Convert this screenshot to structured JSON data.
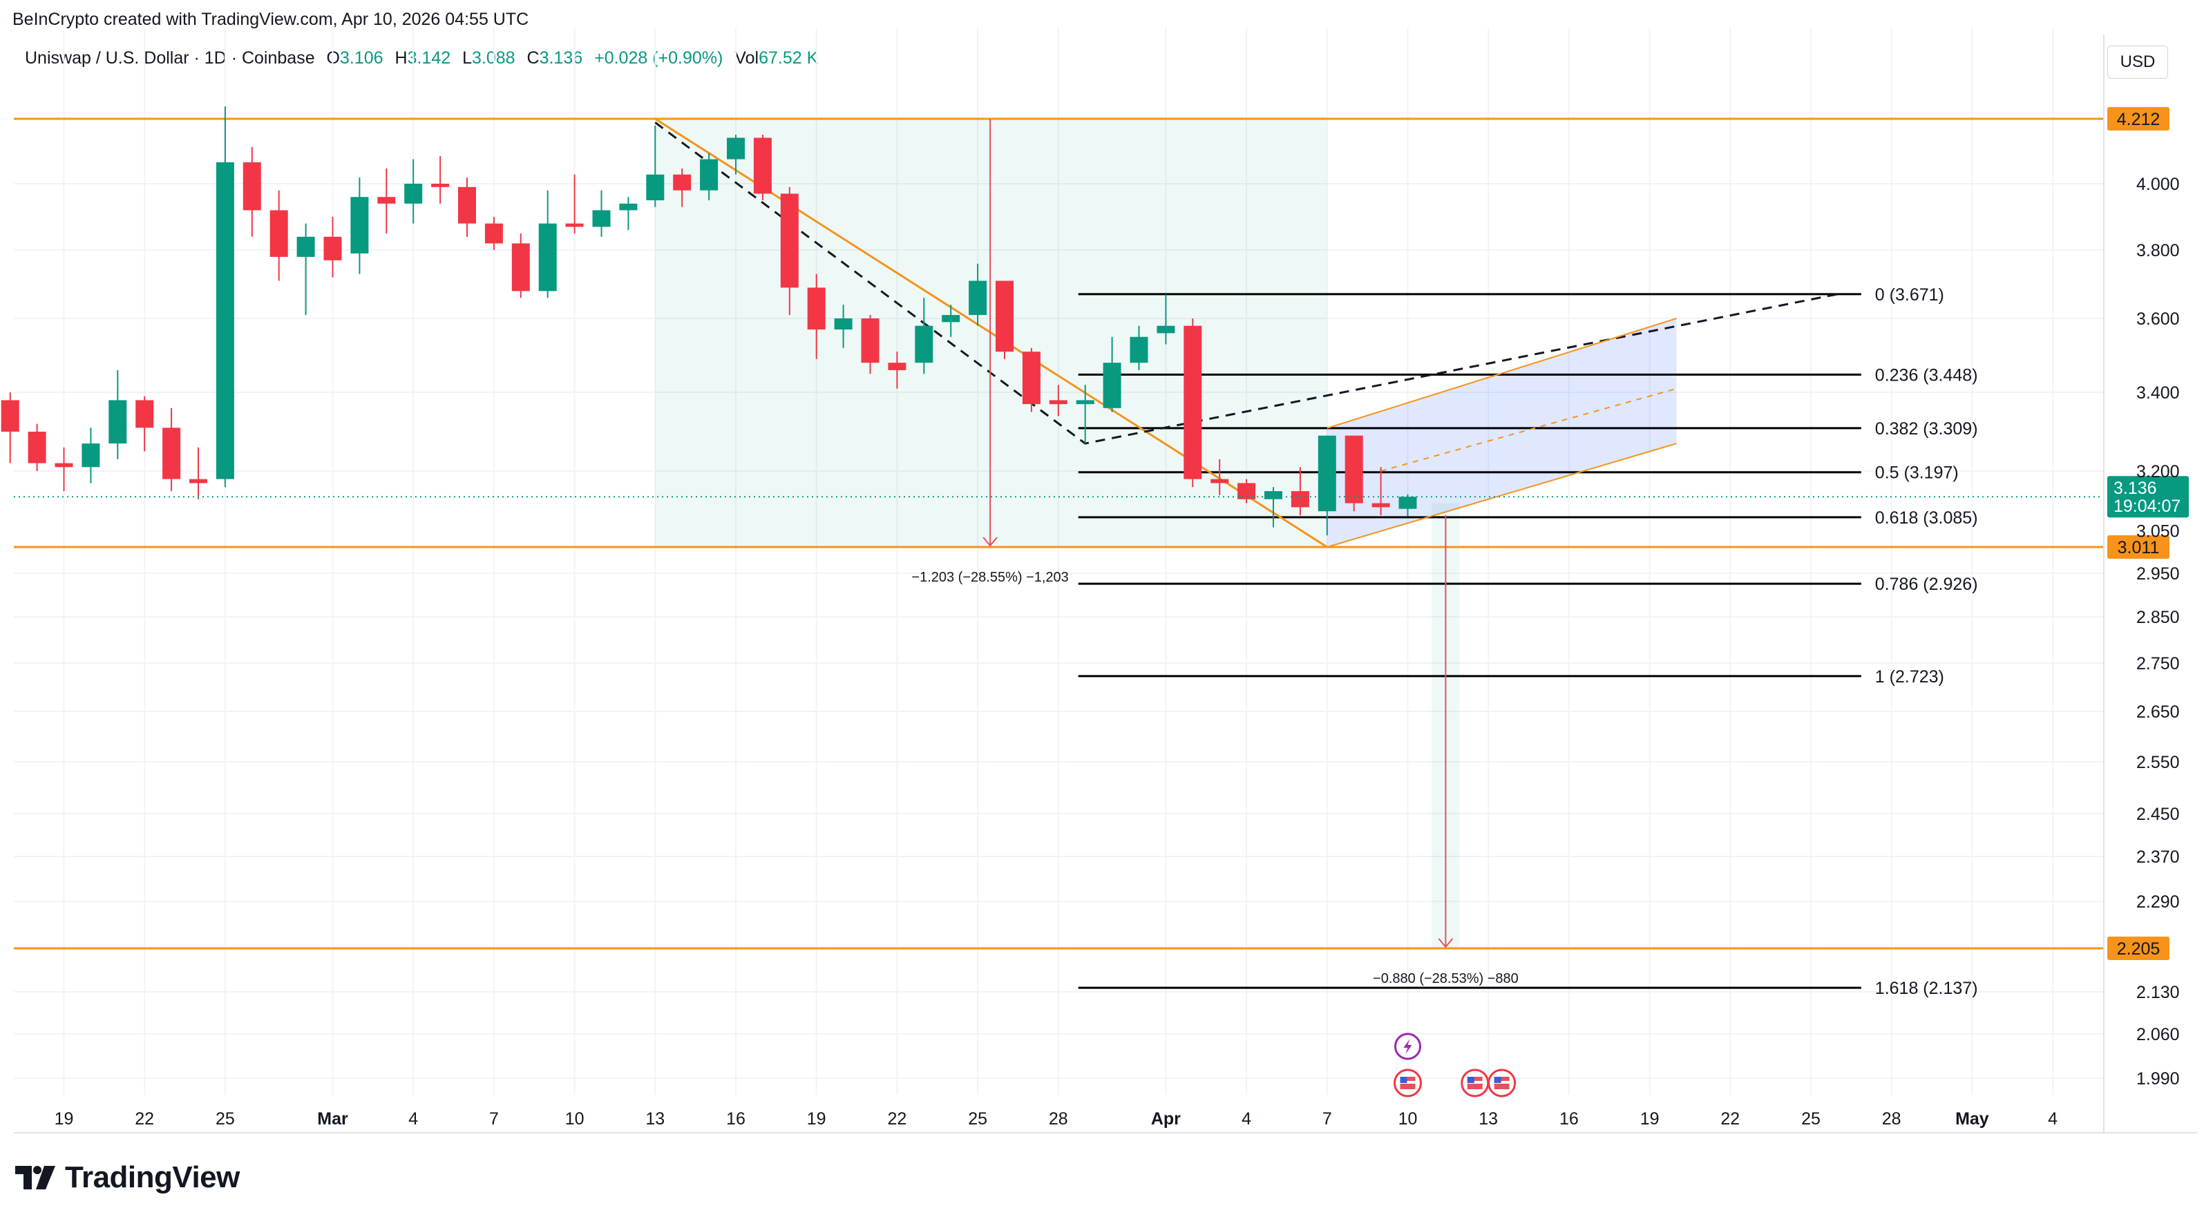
{
  "header": {
    "credit": "BeInCrypto created with TradingView.com, Apr 10, 2026 04:55 UTC",
    "symbol": "Uniswap / U.S. Dollar · 1D · Coinbase",
    "open_label": "O",
    "open": "3.106",
    "high_label": "H",
    "high": "3.142",
    "low_label": "L",
    "low": "3.088",
    "close_label": "C",
    "close": "3.136",
    "change": "+0.028 (+0.90%)",
    "vol_label": "Vol",
    "vol": "67.52 K",
    "currency": "USD"
  },
  "footer": {
    "brand": "TradingView"
  },
  "colors": {
    "up": "#089981",
    "down": "#f23645",
    "level": "#f7931a",
    "fib": "#000000",
    "measure": "#e8505b"
  },
  "chart_data": {
    "type": "candlestick",
    "timeframe": "1D",
    "x_ticks": [
      "19",
      "22",
      "25",
      "Mar",
      "4",
      "7",
      "10",
      "13",
      "16",
      "19",
      "22",
      "25",
      "28",
      "Apr",
      "4",
      "7",
      "10",
      "13",
      "16",
      "19",
      "22",
      "25",
      "28",
      "May",
      "4"
    ],
    "y_ticks": [
      "4.000",
      "3.800",
      "3.600",
      "3.400",
      "3.200",
      "2.950",
      "2.850",
      "2.750",
      "2.650",
      "2.550",
      "2.450",
      "2.370",
      "2.290",
      "2.130",
      "2.060",
      "1.990"
    ],
    "ylim": [
      1.96,
      4.4
    ],
    "candles": [
      {
        "d": "Feb 17",
        "o": 3.38,
        "h": 3.4,
        "l": 3.22,
        "c": 3.3
      },
      {
        "d": "Feb 18",
        "o": 3.3,
        "h": 3.32,
        "l": 3.2,
        "c": 3.22
      },
      {
        "d": "Feb 19",
        "o": 3.22,
        "h": 3.26,
        "l": 3.15,
        "c": 3.21
      },
      {
        "d": "Feb 20",
        "o": 3.21,
        "h": 3.31,
        "l": 3.17,
        "c": 3.27
      },
      {
        "d": "Feb 21",
        "o": 3.27,
        "h": 3.46,
        "l": 3.23,
        "c": 3.38
      },
      {
        "d": "Feb 22",
        "o": 3.38,
        "h": 3.39,
        "l": 3.25,
        "c": 3.31
      },
      {
        "d": "Feb 23",
        "o": 3.31,
        "h": 3.36,
        "l": 3.15,
        "c": 3.18
      },
      {
        "d": "Feb 24",
        "o": 3.18,
        "h": 3.26,
        "l": 3.13,
        "c": 3.17
      },
      {
        "d": "Feb 25",
        "o": 3.18,
        "h": 4.25,
        "l": 3.16,
        "c": 4.07
      },
      {
        "d": "Feb 26",
        "o": 4.07,
        "h": 4.12,
        "l": 3.84,
        "c": 3.92
      },
      {
        "d": "Feb 27",
        "o": 3.92,
        "h": 3.98,
        "l": 3.71,
        "c": 3.78
      },
      {
        "d": "Feb 28",
        "o": 3.78,
        "h": 3.88,
        "l": 3.61,
        "c": 3.84
      },
      {
        "d": "Mar 1",
        "o": 3.84,
        "h": 3.9,
        "l": 3.72,
        "c": 3.77
      },
      {
        "d": "Mar 2",
        "o": 3.79,
        "h": 4.02,
        "l": 3.73,
        "c": 3.96
      },
      {
        "d": "Mar 3",
        "o": 3.96,
        "h": 4.05,
        "l": 3.85,
        "c": 3.94
      },
      {
        "d": "Mar 4",
        "o": 3.94,
        "h": 4.08,
        "l": 3.88,
        "c": 4.0
      },
      {
        "d": "Mar 5",
        "o": 4.0,
        "h": 4.09,
        "l": 3.94,
        "c": 3.99
      },
      {
        "d": "Mar 6",
        "o": 3.99,
        "h": 4.02,
        "l": 3.84,
        "c": 3.88
      },
      {
        "d": "Mar 7",
        "o": 3.88,
        "h": 3.9,
        "l": 3.8,
        "c": 3.82
      },
      {
        "d": "Mar 8",
        "o": 3.82,
        "h": 3.85,
        "l": 3.66,
        "c": 3.68
      },
      {
        "d": "Mar 9",
        "o": 3.68,
        "h": 3.98,
        "l": 3.66,
        "c": 3.88
      },
      {
        "d": "Mar 10",
        "o": 3.88,
        "h": 4.03,
        "l": 3.85,
        "c": 3.87
      },
      {
        "d": "Mar 11",
        "o": 3.87,
        "h": 3.98,
        "l": 3.84,
        "c": 3.92
      },
      {
        "d": "Mar 12",
        "o": 3.92,
        "h": 3.96,
        "l": 3.86,
        "c": 3.94
      },
      {
        "d": "Mar 13",
        "o": 3.95,
        "h": 4.19,
        "l": 3.93,
        "c": 4.03
      },
      {
        "d": "Mar 14",
        "o": 4.03,
        "h": 4.05,
        "l": 3.93,
        "c": 3.98
      },
      {
        "d": "Mar 15",
        "o": 3.98,
        "h": 4.1,
        "l": 3.95,
        "c": 4.08
      },
      {
        "d": "Mar 16",
        "o": 4.08,
        "h": 4.16,
        "l": 4.03,
        "c": 4.15
      },
      {
        "d": "Mar 17",
        "o": 4.15,
        "h": 4.16,
        "l": 3.95,
        "c": 3.97
      },
      {
        "d": "Mar 18",
        "o": 3.97,
        "h": 3.99,
        "l": 3.61,
        "c": 3.69
      },
      {
        "d": "Mar 19",
        "o": 3.69,
        "h": 3.73,
        "l": 3.49,
        "c": 3.57
      },
      {
        "d": "Mar 20",
        "o": 3.57,
        "h": 3.64,
        "l": 3.52,
        "c": 3.6
      },
      {
        "d": "Mar 21",
        "o": 3.6,
        "h": 3.61,
        "l": 3.45,
        "c": 3.48
      },
      {
        "d": "Mar 22",
        "o": 3.48,
        "h": 3.51,
        "l": 3.41,
        "c": 3.46
      },
      {
        "d": "Mar 23",
        "o": 3.48,
        "h": 3.66,
        "l": 3.45,
        "c": 3.58
      },
      {
        "d": "Mar 24",
        "o": 3.59,
        "h": 3.64,
        "l": 3.55,
        "c": 3.61
      },
      {
        "d": "Mar 25",
        "o": 3.61,
        "h": 3.76,
        "l": 3.58,
        "c": 3.71
      },
      {
        "d": "Mar 26",
        "o": 3.71,
        "h": 3.71,
        "l": 3.49,
        "c": 3.51
      },
      {
        "d": "Mar 27",
        "o": 3.51,
        "h": 3.52,
        "l": 3.35,
        "c": 3.37
      },
      {
        "d": "Mar 28",
        "o": 3.38,
        "h": 3.42,
        "l": 3.34,
        "c": 3.37
      },
      {
        "d": "Mar 29",
        "o": 3.37,
        "h": 3.42,
        "l": 3.27,
        "c": 3.38
      },
      {
        "d": "Mar 30",
        "o": 3.36,
        "h": 3.55,
        "l": 3.35,
        "c": 3.48
      },
      {
        "d": "Mar 31",
        "o": 3.48,
        "h": 3.58,
        "l": 3.46,
        "c": 3.55
      },
      {
        "d": "Apr 1",
        "o": 3.56,
        "h": 3.67,
        "l": 3.53,
        "c": 3.58
      },
      {
        "d": "Apr 2",
        "o": 3.58,
        "h": 3.6,
        "l": 3.16,
        "c": 3.18
      },
      {
        "d": "Apr 3",
        "o": 3.18,
        "h": 3.23,
        "l": 3.14,
        "c": 3.17
      },
      {
        "d": "Apr 4",
        "o": 3.17,
        "h": 3.18,
        "l": 3.12,
        "c": 3.13
      },
      {
        "d": "Apr 5",
        "o": 3.13,
        "h": 3.16,
        "l": 3.06,
        "c": 3.15
      },
      {
        "d": "Apr 6",
        "o": 3.15,
        "h": 3.21,
        "l": 3.09,
        "c": 3.11
      },
      {
        "d": "Apr 7",
        "o": 3.1,
        "h": 3.29,
        "l": 3.04,
        "c": 3.29
      },
      {
        "d": "Apr 8",
        "o": 3.29,
        "h": 3.29,
        "l": 3.1,
        "c": 3.12
      },
      {
        "d": "Apr 9",
        "o": 3.12,
        "h": 3.21,
        "l": 3.09,
        "c": 3.11
      },
      {
        "d": "Apr 10",
        "o": 3.106,
        "h": 3.142,
        "l": 3.088,
        "c": 3.136
      }
    ],
    "horizontal_levels": [
      {
        "value": 4.212,
        "label": "4.212"
      },
      {
        "value": 3.011,
        "label": "3.011"
      },
      {
        "value": 2.205,
        "label": "2.205"
      }
    ],
    "fib_levels": [
      {
        "ratio": "0",
        "value": 3.671,
        "label": "0 (3.671)"
      },
      {
        "ratio": "0.236",
        "value": 3.448,
        "label": "0.236 (3.448)"
      },
      {
        "ratio": "0.382",
        "value": 3.309,
        "label": "0.382 (3.309)"
      },
      {
        "ratio": "0.5",
        "value": 3.197,
        "label": "0.5 (3.197)"
      },
      {
        "ratio": "0.618",
        "value": 3.085,
        "label": "0.618 (3.085)"
      },
      {
        "ratio": "0.786",
        "value": 2.926,
        "label": "0.786 (2.926)"
      },
      {
        "ratio": "1",
        "value": 2.723,
        "label": "1 (2.723)"
      },
      {
        "ratio": "1.618",
        "value": 2.137,
        "label": "1.618 (2.137)"
      }
    ],
    "measures": [
      {
        "label": "−1.203 (−28.55%) −1,203"
      },
      {
        "label": "−0.880 (−28.53%) −880"
      }
    ],
    "current_price": {
      "value": 3.136,
      "label": "3.136",
      "countdown": "19:04:07"
    },
    "partial_tick": "3.050",
    "grid": true
  }
}
